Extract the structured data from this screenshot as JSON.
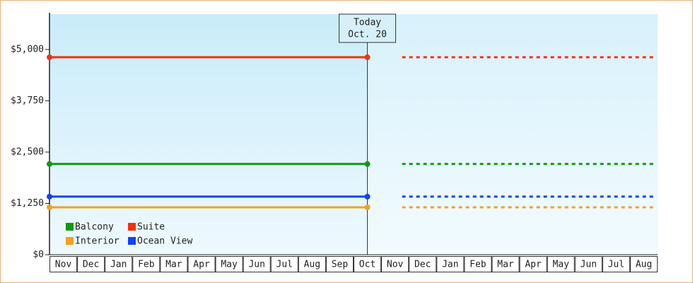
{
  "chart_data": {
    "type": "line",
    "categories": [
      "Nov",
      "Dec",
      "Jan",
      "Feb",
      "Mar",
      "Apr",
      "May",
      "Jun",
      "Jul",
      "Aug",
      "Sep",
      "Oct",
      "Nov",
      "Dec",
      "Jan",
      "Feb",
      "Mar",
      "Apr",
      "May",
      "Jun",
      "Jul",
      "Aug"
    ],
    "today": {
      "title": "Today",
      "date": "Oct. 20",
      "index": 11
    },
    "series": [
      {
        "name": "Balcony",
        "color": "#119911",
        "values": [
          2210,
          2210,
          2210,
          2210,
          2210,
          2210,
          2210,
          2210,
          2210,
          2210,
          2210,
          2210,
          2210,
          2210,
          2210,
          2210,
          2210,
          2210,
          2210,
          2210,
          2210,
          2210
        ]
      },
      {
        "name": "Suite",
        "color": "#ee3311",
        "values": [
          4810,
          4810,
          4810,
          4810,
          4810,
          4810,
          4810,
          4810,
          4810,
          4810,
          4810,
          4810,
          4810,
          4810,
          4810,
          4810,
          4810,
          4810,
          4810,
          4810,
          4810,
          4810
        ]
      },
      {
        "name": "Interior",
        "color": "#f4a11c",
        "values": [
          1155,
          1155,
          1155,
          1155,
          1155,
          1155,
          1155,
          1155,
          1155,
          1155,
          1155,
          1155,
          1155,
          1155,
          1155,
          1155,
          1155,
          1155,
          1155,
          1155,
          1155,
          1155
        ]
      },
      {
        "name": "Ocean View",
        "color": "#1144ee",
        "values": [
          1415,
          1415,
          1415,
          1415,
          1415,
          1415,
          1415,
          1415,
          1415,
          1415,
          1415,
          1415,
          1415,
          1415,
          1415,
          1415,
          1415,
          1415,
          1415,
          1415,
          1415,
          1415
        ]
      }
    ],
    "ylim": [
      0,
      5860
    ],
    "yticks": [
      {
        "value": 0,
        "label": "$0"
      },
      {
        "value": 1250,
        "label": "$1,250"
      },
      {
        "value": 2500,
        "label": "$2,500"
      },
      {
        "value": 3750,
        "label": "$3,750"
      },
      {
        "value": 5000,
        "label": "$5,000"
      }
    ]
  }
}
